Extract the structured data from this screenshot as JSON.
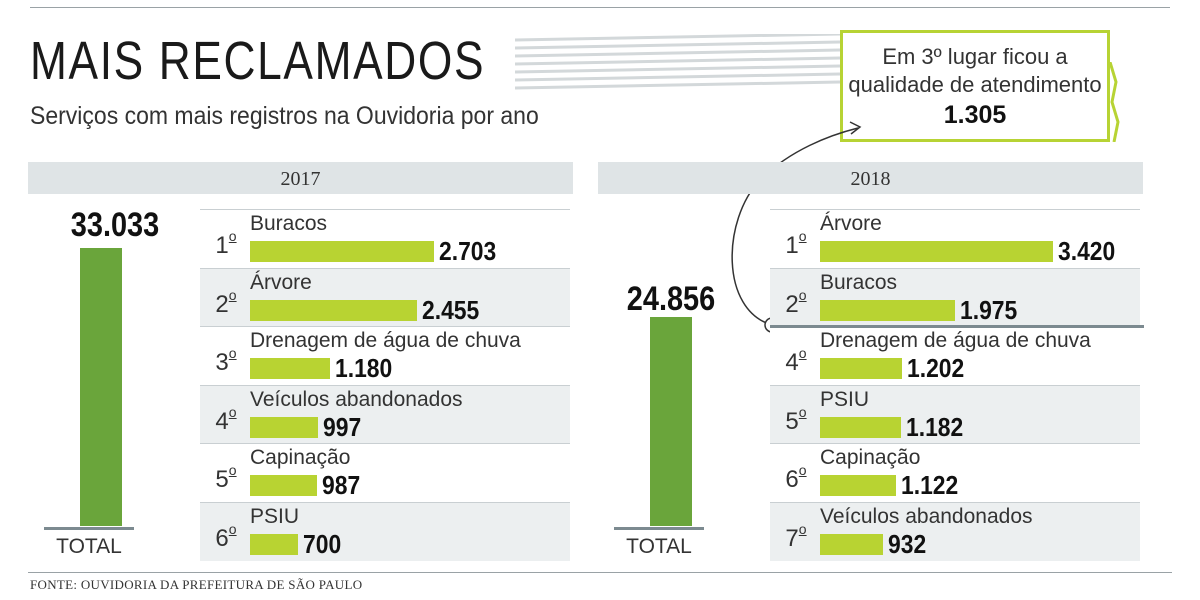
{
  "title": "MAIS RECLAMADOS",
  "subtitle": "Serviços com mais registros na Ouvidoria por ano",
  "callout": {
    "line1": "Em 3º lugar ficou a",
    "line2": "qualidade de atendimento",
    "value": "1.305"
  },
  "source": "FONTE: OUVIDORIA DA PREFEITURA DE SÃO PAULO",
  "total_label": "TOTAL",
  "colors": {
    "bar": "#b8d332",
    "total_bar": "#6aa53b",
    "callout_border": "#b7d334"
  },
  "chart_data": [
    {
      "type": "bar",
      "year": "2017",
      "total": 33033,
      "total_text": "33.033",
      "items": [
        {
          "rank": "1",
          "label": "Buracos",
          "value": 2703,
          "value_text": "2.703"
        },
        {
          "rank": "2",
          "label": "Árvore",
          "value": 2455,
          "value_text": "2.455"
        },
        {
          "rank": "3",
          "label": "Drenagem de água de chuva",
          "value": 1180,
          "value_text": "1.180"
        },
        {
          "rank": "4",
          "label": "Veículos abandonados",
          "value": 997,
          "value_text": "997"
        },
        {
          "rank": "5",
          "label": "Capinação",
          "value": 987,
          "value_text": "987"
        },
        {
          "rank": "6",
          "label": "PSIU",
          "value": 700,
          "value_text": "700"
        }
      ]
    },
    {
      "type": "bar",
      "year": "2018",
      "total": 24856,
      "total_text": "24.856",
      "items": [
        {
          "rank": "1",
          "label": "Árvore",
          "value": 3420,
          "value_text": "3.420"
        },
        {
          "rank": "2",
          "label": "Buracos",
          "value": 1975,
          "value_text": "1.975"
        },
        {
          "rank": "4",
          "label": "Drenagem de água de chuva",
          "value": 1202,
          "value_text": "1.202"
        },
        {
          "rank": "5",
          "label": "PSIU",
          "value": 1182,
          "value_text": "1.182"
        },
        {
          "rank": "6",
          "label": "Capinação",
          "value": 1122,
          "value_text": "1.122"
        },
        {
          "rank": "7",
          "label": "Veículos abandonados",
          "value": 932,
          "value_text": "932"
        }
      ]
    }
  ]
}
